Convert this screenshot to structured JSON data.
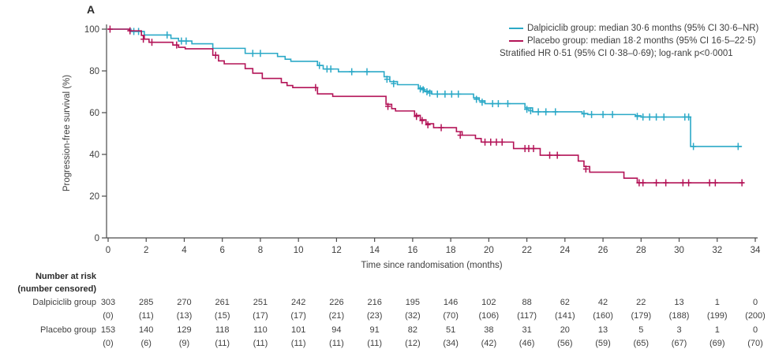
{
  "figure": {
    "panel_label": "A"
  },
  "chart_data": {
    "type": "line",
    "subtype": "kaplan-meier-step",
    "title": "",
    "xlabel": "Time since randomisation (months)",
    "ylabel": "Progression-free survival (%)",
    "xlim": [
      0,
      34
    ],
    "xticks": [
      0,
      2,
      4,
      6,
      8,
      10,
      12,
      14,
      16,
      18,
      20,
      22,
      24,
      26,
      28,
      30,
      32,
      34
    ],
    "ylim": [
      0,
      100
    ],
    "yticks": [
      0,
      20,
      40,
      60,
      80,
      100
    ],
    "grid": false,
    "legend_position": "top-right",
    "annotation": "Stratified HR 0·51 (95% CI 0·38–0·69); log-rank p<0·0001",
    "axis_color": "#4a4a4a",
    "series": [
      {
        "name": "Dalpiciclib group",
        "legend_label": "Dalpiciclib group: median 30·6 months (95% CI 30·6–NR)",
        "median_months": "30·6",
        "ci": "30·6–NR",
        "color": "#2BA9C7",
        "steps": [
          [
            0,
            100
          ],
          [
            1.2,
            98.9
          ],
          [
            1.9,
            97.2
          ],
          [
            3.3,
            95.6
          ],
          [
            3.7,
            94.3
          ],
          [
            4.4,
            93.0
          ],
          [
            5.5,
            90.8
          ],
          [
            7.2,
            88.4
          ],
          [
            8.9,
            86.9
          ],
          [
            9.3,
            85.6
          ],
          [
            9.6,
            84.6
          ],
          [
            11.0,
            82.6
          ],
          [
            11.3,
            80.9
          ],
          [
            12.1,
            79.6
          ],
          [
            14.5,
            77.2
          ],
          [
            14.8,
            74.9
          ],
          [
            15.2,
            73.4
          ],
          [
            16.3,
            71.8
          ],
          [
            16.6,
            70.3
          ],
          [
            17.0,
            68.9
          ],
          [
            19.2,
            67.1
          ],
          [
            19.5,
            65.7
          ],
          [
            19.8,
            64.3
          ],
          [
            21.9,
            62.3
          ],
          [
            22.3,
            60.4
          ],
          [
            24.9,
            59.6
          ],
          [
            25.2,
            59.1
          ],
          [
            27.7,
            58.5
          ],
          [
            28.0,
            57.9
          ],
          [
            30.6,
            43.8
          ]
        ],
        "end_time": 33.3,
        "censor_marks": [
          [
            1.35,
            98.9
          ],
          [
            1.6,
            98.9
          ],
          [
            3.1,
            97.2
          ],
          [
            3.85,
            94.3
          ],
          [
            4.1,
            94.3
          ],
          [
            7.6,
            88.4
          ],
          [
            8.0,
            88.4
          ],
          [
            11.1,
            82.6
          ],
          [
            11.5,
            80.9
          ],
          [
            11.7,
            80.9
          ],
          [
            12.8,
            79.6
          ],
          [
            13.6,
            79.6
          ],
          [
            14.65,
            76.0
          ],
          [
            15.0,
            73.9
          ],
          [
            16.4,
            71.4
          ],
          [
            16.55,
            71.0
          ],
          [
            16.75,
            70.0
          ],
          [
            16.9,
            69.4
          ],
          [
            17.3,
            68.9
          ],
          [
            17.7,
            68.9
          ],
          [
            18.05,
            68.9
          ],
          [
            18.4,
            68.9
          ],
          [
            19.35,
            66.4
          ],
          [
            19.65,
            65.0
          ],
          [
            20.2,
            64.3
          ],
          [
            20.5,
            64.3
          ],
          [
            21.0,
            64.3
          ],
          [
            22.0,
            61.6
          ],
          [
            22.2,
            60.9
          ],
          [
            22.6,
            60.4
          ],
          [
            23.0,
            60.4
          ],
          [
            23.5,
            60.4
          ],
          [
            25.0,
            59.4
          ],
          [
            25.4,
            59.1
          ],
          [
            26.0,
            59.1
          ],
          [
            26.5,
            59.1
          ],
          [
            27.8,
            58.2
          ],
          [
            28.1,
            57.9
          ],
          [
            28.45,
            57.9
          ],
          [
            28.8,
            57.9
          ],
          [
            29.2,
            57.9
          ],
          [
            30.3,
            57.9
          ],
          [
            30.5,
            57.9
          ],
          [
            30.75,
            43.8
          ],
          [
            33.1,
            43.8
          ]
        ]
      },
      {
        "name": "Placebo group",
        "legend_label": "Placebo group: median 18·2 months (95% CI 16·5–22·5)",
        "median_months": "18·2",
        "ci": "16·5–22·5",
        "color": "#B31357",
        "steps": [
          [
            0,
            100
          ],
          [
            1.1,
            99.2
          ],
          [
            1.75,
            97.0
          ],
          [
            1.9,
            95.2
          ],
          [
            2.15,
            93.7
          ],
          [
            3.4,
            92.4
          ],
          [
            3.7,
            91.3
          ],
          [
            4.05,
            90.6
          ],
          [
            5.5,
            87.5
          ],
          [
            5.8,
            84.8
          ],
          [
            6.1,
            83.4
          ],
          [
            7.2,
            81.1
          ],
          [
            7.6,
            78.9
          ],
          [
            8.1,
            76.4
          ],
          [
            9.1,
            74.4
          ],
          [
            9.4,
            73.0
          ],
          [
            9.7,
            72.0
          ],
          [
            11.0,
            69.0
          ],
          [
            11.8,
            67.8
          ],
          [
            14.6,
            64.0
          ],
          [
            14.9,
            61.9
          ],
          [
            15.1,
            60.8
          ],
          [
            16.1,
            58.7
          ],
          [
            16.4,
            56.6
          ],
          [
            16.7,
            54.7
          ],
          [
            17.1,
            52.8
          ],
          [
            18.3,
            50.9
          ],
          [
            18.6,
            49.2
          ],
          [
            19.3,
            47.6
          ],
          [
            19.6,
            45.9
          ],
          [
            21.3,
            42.8
          ],
          [
            22.7,
            39.6
          ],
          [
            24.7,
            36.8
          ],
          [
            25.0,
            34.2
          ],
          [
            25.3,
            31.5
          ],
          [
            27.1,
            28.6
          ],
          [
            27.8,
            26.4
          ]
        ],
        "end_time": 33.4,
        "censor_marks": [
          [
            0.1,
            100
          ],
          [
            1.15,
            99.2
          ],
          [
            1.85,
            95.2
          ],
          [
            2.3,
            93.7
          ],
          [
            3.6,
            92.4
          ],
          [
            5.65,
            87.5
          ],
          [
            10.9,
            72.0
          ],
          [
            14.7,
            63.0
          ],
          [
            16.2,
            58.2
          ],
          [
            16.5,
            56.2
          ],
          [
            16.8,
            54.2
          ],
          [
            17.5,
            52.8
          ],
          [
            18.5,
            49.2
          ],
          [
            19.8,
            45.9
          ],
          [
            20.1,
            45.9
          ],
          [
            20.4,
            45.9
          ],
          [
            20.7,
            45.9
          ],
          [
            21.9,
            42.8
          ],
          [
            22.1,
            42.8
          ],
          [
            22.35,
            42.8
          ],
          [
            23.2,
            39.6
          ],
          [
            23.6,
            39.6
          ],
          [
            25.1,
            33.0
          ],
          [
            27.9,
            26.4
          ],
          [
            28.1,
            26.4
          ],
          [
            28.8,
            26.4
          ],
          [
            29.3,
            26.4
          ],
          [
            30.2,
            26.4
          ],
          [
            30.5,
            26.4
          ],
          [
            31.6,
            26.4
          ],
          [
            31.9,
            26.4
          ],
          [
            33.3,
            26.4
          ]
        ]
      }
    ]
  },
  "risk_table": {
    "header_line1": "Number at risk",
    "header_line2": "(number censored)",
    "times": [
      0,
      2,
      4,
      6,
      8,
      10,
      12,
      14,
      16,
      18,
      20,
      22,
      24,
      26,
      28,
      30,
      32,
      34
    ],
    "rows": [
      {
        "label": "Dalpiciclib group",
        "at_risk": [
          303,
          285,
          270,
          261,
          251,
          242,
          226,
          216,
          195,
          146,
          102,
          88,
          62,
          42,
          22,
          13,
          1,
          0
        ],
        "censored": [
          0,
          11,
          13,
          15,
          17,
          17,
          21,
          23,
          32,
          70,
          106,
          117,
          141,
          160,
          179,
          188,
          199,
          200
        ]
      },
      {
        "label": "Placebo group",
        "at_risk": [
          153,
          140,
          129,
          118,
          110,
          101,
          94,
          91,
          82,
          51,
          38,
          31,
          20,
          13,
          5,
          3,
          1,
          0
        ],
        "censored": [
          0,
          6,
          9,
          11,
          11,
          11,
          11,
          11,
          12,
          34,
          42,
          46,
          56,
          59,
          65,
          67,
          69,
          70
        ]
      }
    ]
  }
}
